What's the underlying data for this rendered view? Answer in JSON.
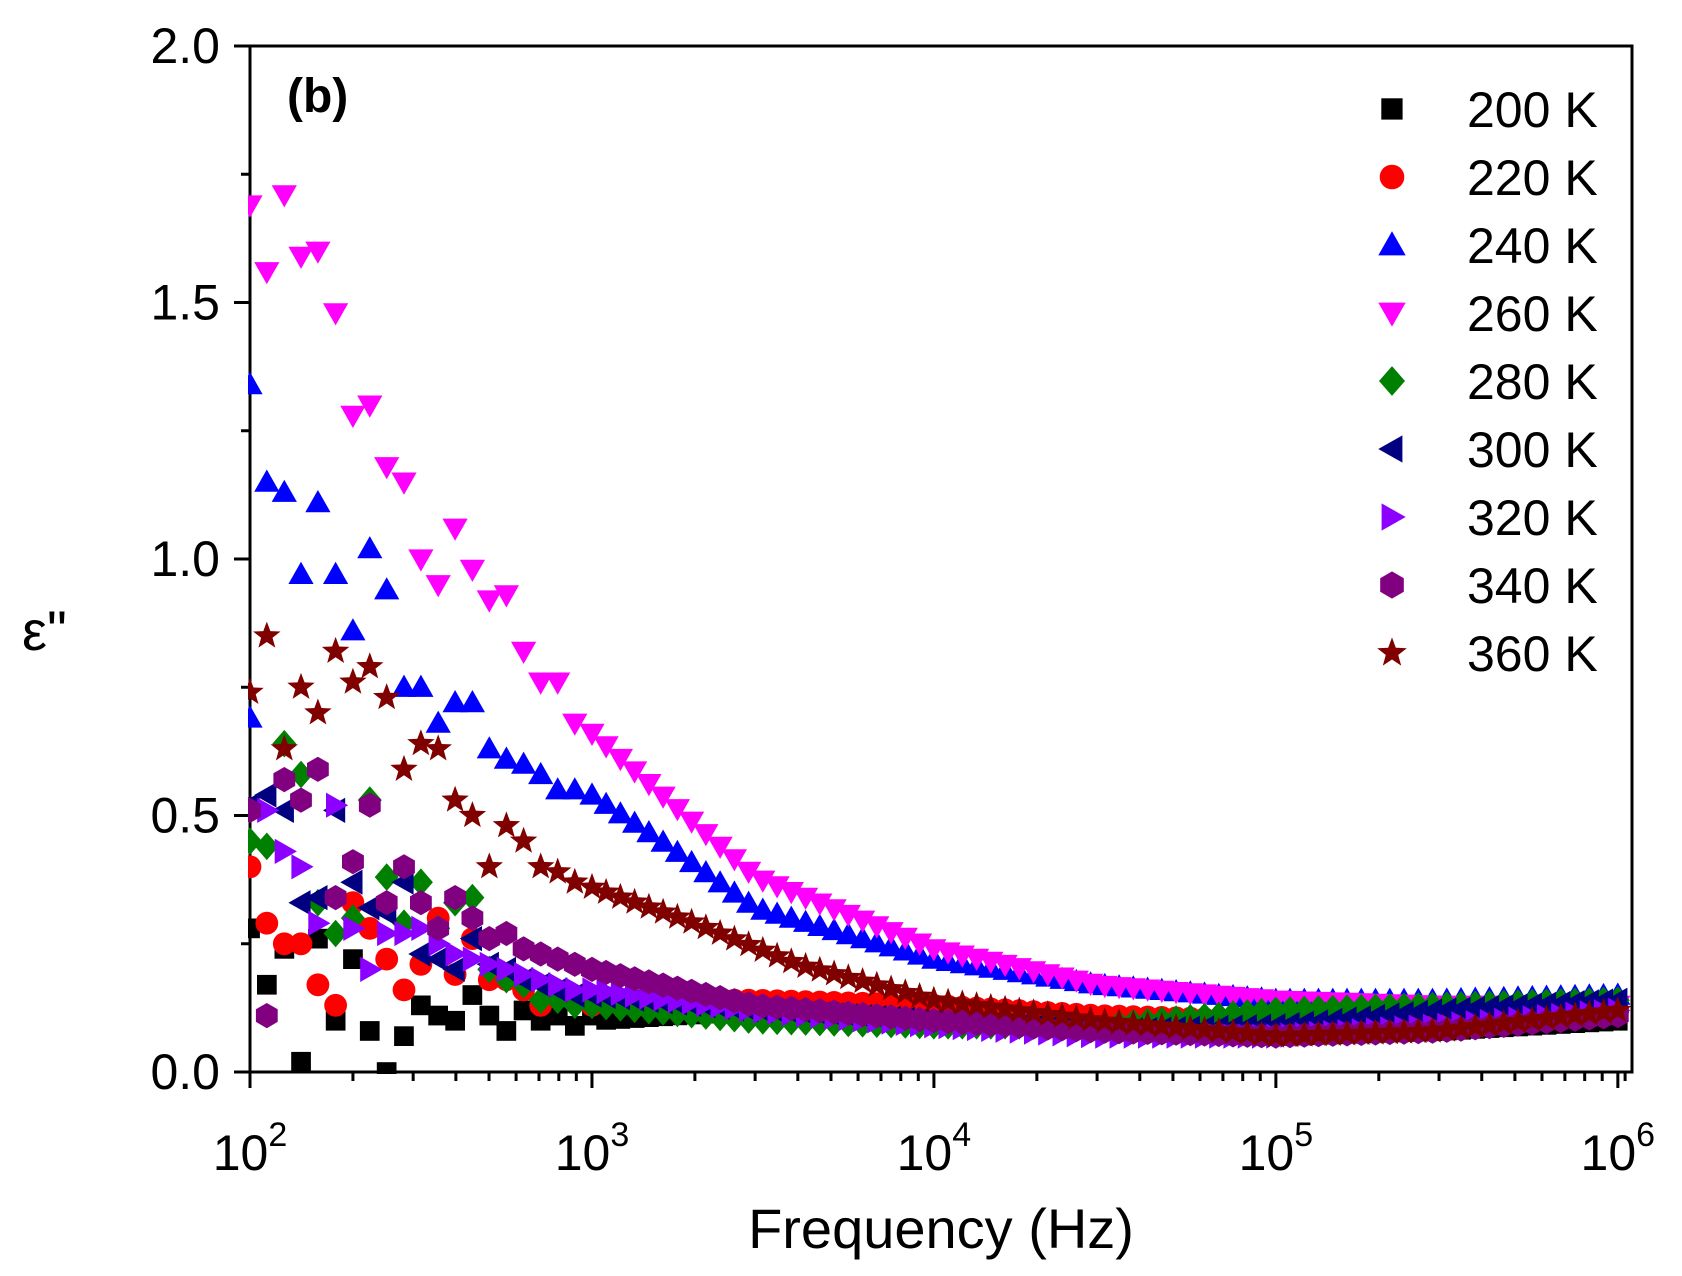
{
  "chart_data": {
    "type": "scatter",
    "panel_label": "(b)",
    "xlabel": "Frequency (Hz)",
    "ylabel": "ε\"",
    "xscale": "log",
    "xlim": [
      100,
      1100000
    ],
    "ylim": [
      0,
      2.0
    ],
    "x_ticks": [
      {
        "value": 100,
        "base": "10",
        "exp": "2"
      },
      {
        "value": 1000,
        "base": "10",
        "exp": "3"
      },
      {
        "value": 10000,
        "base": "10",
        "exp": "4"
      },
      {
        "value": 100000,
        "base": "10",
        "exp": "5"
      },
      {
        "value": 1000000,
        "base": "10",
        "exp": "6"
      }
    ],
    "y_ticks": [
      {
        "value": 0.0,
        "label": "0.0"
      },
      {
        "value": 0.5,
        "label": "0.5"
      },
      {
        "value": 1.0,
        "label": "1.0"
      },
      {
        "value": 1.5,
        "label": "1.5"
      },
      {
        "value": 2.0,
        "label": "2.0"
      }
    ],
    "legend_position": "top-right",
    "series": [
      {
        "name": "200 K",
        "marker": "square",
        "color": "#000000",
        "points": [
          [
            100,
            0.28
          ],
          [
            112,
            0.17
          ],
          [
            126,
            0.24
          ],
          [
            141,
            0.02
          ],
          [
            158,
            0.26
          ],
          [
            178,
            0.1
          ],
          [
            200,
            0.22
          ],
          [
            224,
            0.08
          ],
          [
            251,
            0.0
          ],
          [
            282,
            0.07
          ],
          [
            316,
            0.13
          ],
          [
            355,
            0.11
          ],
          [
            398,
            0.1
          ],
          [
            447,
            0.15
          ],
          [
            501,
            0.11
          ],
          [
            562,
            0.08
          ],
          [
            631,
            0.12
          ],
          [
            708,
            0.1
          ],
          [
            794,
            0.11
          ],
          [
            891,
            0.09
          ],
          [
            1000,
            0.11
          ]
        ],
        "anchors": [
          [
            1000,
            0.1
          ],
          [
            3000,
            0.12
          ],
          [
            10000,
            0.12
          ],
          [
            30000,
            0.1
          ],
          [
            100000,
            0.07
          ],
          [
            300000,
            0.08
          ],
          [
            1000000,
            0.1
          ]
        ]
      },
      {
        "name": "220 K",
        "marker": "circle",
        "color": "#ff0000",
        "points": [
          [
            100,
            0.4
          ],
          [
            112,
            0.29
          ],
          [
            126,
            0.25
          ],
          [
            141,
            0.25
          ],
          [
            158,
            0.17
          ],
          [
            178,
            0.13
          ],
          [
            200,
            0.33
          ],
          [
            224,
            0.28
          ],
          [
            251,
            0.22
          ],
          [
            282,
            0.16
          ],
          [
            316,
            0.21
          ],
          [
            355,
            0.3
          ],
          [
            398,
            0.19
          ],
          [
            447,
            0.26
          ],
          [
            501,
            0.18
          ],
          [
            562,
            0.18
          ],
          [
            631,
            0.16
          ],
          [
            708,
            0.13
          ],
          [
            794,
            0.15
          ],
          [
            891,
            0.14
          ],
          [
            1000,
            0.13
          ]
        ],
        "anchors": [
          [
            1000,
            0.14
          ],
          [
            3000,
            0.14
          ],
          [
            10000,
            0.13
          ],
          [
            30000,
            0.11
          ],
          [
            100000,
            0.1
          ],
          [
            300000,
            0.1
          ],
          [
            1000000,
            0.12
          ]
        ]
      },
      {
        "name": "240 K",
        "marker": "triangle-up",
        "color": "#0000ff",
        "points": [
          [
            100,
            1.34
          ],
          [
            100,
            0.69
          ],
          [
            112,
            1.15
          ],
          [
            126,
            1.13
          ],
          [
            141,
            0.97
          ],
          [
            158,
            1.11
          ],
          [
            178,
            0.97
          ],
          [
            200,
            0.86
          ],
          [
            224,
            1.02
          ],
          [
            251,
            0.94
          ],
          [
            282,
            0.75
          ],
          [
            316,
            0.75
          ],
          [
            355,
            0.68
          ],
          [
            398,
            0.72
          ],
          [
            447,
            0.72
          ],
          [
            501,
            0.63
          ],
          [
            562,
            0.61
          ],
          [
            631,
            0.6
          ],
          [
            708,
            0.58
          ],
          [
            794,
            0.55
          ],
          [
            891,
            0.55
          ],
          [
            1000,
            0.54
          ]
        ],
        "anchors": [
          [
            1000,
            0.54
          ],
          [
            1600,
            0.45
          ],
          [
            3000,
            0.32
          ],
          [
            10000,
            0.22
          ],
          [
            30000,
            0.17
          ],
          [
            100000,
            0.14
          ],
          [
            300000,
            0.14
          ],
          [
            1000000,
            0.15
          ]
        ]
      },
      {
        "name": "260 K",
        "marker": "triangle-down",
        "color": "#ff00ff",
        "points": [
          [
            100,
            1.69
          ],
          [
            112,
            1.56
          ],
          [
            126,
            1.71
          ],
          [
            141,
            1.59
          ],
          [
            158,
            1.6
          ],
          [
            178,
            1.48
          ],
          [
            200,
            1.28
          ],
          [
            224,
            1.3
          ],
          [
            251,
            1.18
          ],
          [
            282,
            1.15
          ],
          [
            316,
            1.0
          ],
          [
            355,
            0.95
          ],
          [
            398,
            1.06
          ],
          [
            447,
            0.98
          ],
          [
            501,
            0.92
          ],
          [
            562,
            0.93
          ],
          [
            631,
            0.82
          ],
          [
            708,
            0.76
          ],
          [
            794,
            0.76
          ],
          [
            891,
            0.68
          ],
          [
            1000,
            0.66
          ]
        ],
        "anchors": [
          [
            1000,
            0.66
          ],
          [
            1600,
            0.54
          ],
          [
            3000,
            0.38
          ],
          [
            10000,
            0.24
          ],
          [
            30000,
            0.17
          ],
          [
            100000,
            0.14
          ],
          [
            300000,
            0.13
          ],
          [
            1000000,
            0.13
          ]
        ]
      },
      {
        "name": "280 K",
        "marker": "diamond",
        "color": "#008000",
        "points": [
          [
            100,
            0.45
          ],
          [
            112,
            0.44
          ],
          [
            126,
            0.64
          ],
          [
            141,
            0.58
          ],
          [
            158,
            0.33
          ],
          [
            178,
            0.27
          ],
          [
            200,
            0.3
          ],
          [
            224,
            0.53
          ],
          [
            251,
            0.38
          ],
          [
            282,
            0.29
          ],
          [
            316,
            0.37
          ],
          [
            355,
            0.28
          ],
          [
            398,
            0.33
          ],
          [
            447,
            0.34
          ],
          [
            501,
            0.2
          ],
          [
            562,
            0.18
          ],
          [
            631,
            0.17
          ],
          [
            708,
            0.14
          ],
          [
            794,
            0.14
          ],
          [
            891,
            0.13
          ],
          [
            1000,
            0.13
          ]
        ],
        "anchors": [
          [
            1000,
            0.13
          ],
          [
            3000,
            0.1
          ],
          [
            10000,
            0.09
          ],
          [
            30000,
            0.09
          ],
          [
            100000,
            0.12
          ],
          [
            300000,
            0.13
          ],
          [
            1000000,
            0.14
          ]
        ]
      },
      {
        "name": "300 K",
        "marker": "triangle-left",
        "color": "#000080",
        "points": [
          [
            100,
            0.52
          ],
          [
            112,
            0.54
          ],
          [
            126,
            0.51
          ],
          [
            141,
            0.33
          ],
          [
            158,
            0.34
          ],
          [
            178,
            0.51
          ],
          [
            200,
            0.37
          ],
          [
            224,
            0.32
          ],
          [
            251,
            0.31
          ],
          [
            282,
            0.37
          ],
          [
            316,
            0.23
          ],
          [
            355,
            0.22
          ],
          [
            398,
            0.2
          ],
          [
            447,
            0.26
          ],
          [
            501,
            0.21
          ],
          [
            562,
            0.2
          ],
          [
            631,
            0.18
          ],
          [
            708,
            0.17
          ],
          [
            794,
            0.16
          ],
          [
            891,
            0.15
          ],
          [
            1000,
            0.15
          ]
        ],
        "anchors": [
          [
            1000,
            0.15
          ],
          [
            3000,
            0.12
          ],
          [
            10000,
            0.1
          ],
          [
            30000,
            0.08
          ],
          [
            100000,
            0.09
          ],
          [
            300000,
            0.12
          ],
          [
            1000000,
            0.14
          ]
        ]
      },
      {
        "name": "320 K",
        "marker": "triangle-right",
        "color": "#8b00ff",
        "points": [
          [
            100,
            0.52
          ],
          [
            112,
            0.51
          ],
          [
            126,
            0.43
          ],
          [
            141,
            0.4
          ],
          [
            158,
            0.29
          ],
          [
            178,
            0.52
          ],
          [
            200,
            0.28
          ],
          [
            224,
            0.2
          ],
          [
            251,
            0.27
          ],
          [
            282,
            0.27
          ],
          [
            316,
            0.28
          ],
          [
            355,
            0.25
          ],
          [
            398,
            0.23
          ],
          [
            447,
            0.22
          ],
          [
            501,
            0.21
          ],
          [
            562,
            0.2
          ],
          [
            631,
            0.19
          ],
          [
            708,
            0.18
          ],
          [
            794,
            0.17
          ],
          [
            891,
            0.16
          ],
          [
            1000,
            0.16
          ]
        ],
        "anchors": [
          [
            1000,
            0.16
          ],
          [
            3000,
            0.12
          ],
          [
            10000,
            0.09
          ],
          [
            30000,
            0.07
          ],
          [
            100000,
            0.07
          ],
          [
            300000,
            0.09
          ],
          [
            1000000,
            0.12
          ]
        ]
      },
      {
        "name": "340 K",
        "marker": "hexagon",
        "color": "#800080",
        "points": [
          [
            100,
            0.51
          ],
          [
            112,
            0.11
          ],
          [
            126,
            0.57
          ],
          [
            141,
            0.53
          ],
          [
            158,
            0.59
          ],
          [
            178,
            0.34
          ],
          [
            200,
            0.41
          ],
          [
            224,
            0.52
          ],
          [
            251,
            0.33
          ],
          [
            282,
            0.4
          ],
          [
            316,
            0.33
          ],
          [
            355,
            0.28
          ],
          [
            398,
            0.34
          ],
          [
            447,
            0.3
          ],
          [
            501,
            0.26
          ],
          [
            562,
            0.27
          ],
          [
            631,
            0.24
          ],
          [
            708,
            0.23
          ],
          [
            794,
            0.22
          ],
          [
            891,
            0.21
          ],
          [
            1000,
            0.2
          ]
        ],
        "anchors": [
          [
            1000,
            0.2
          ],
          [
            3000,
            0.13
          ],
          [
            10000,
            0.1
          ],
          [
            30000,
            0.08
          ],
          [
            100000,
            0.07
          ],
          [
            300000,
            0.08
          ],
          [
            1000000,
            0.11
          ]
        ]
      },
      {
        "name": "360 K",
        "marker": "star",
        "color": "#800000",
        "points": [
          [
            100,
            0.74
          ],
          [
            112,
            0.85
          ],
          [
            126,
            0.63
          ],
          [
            141,
            0.75
          ],
          [
            158,
            0.7
          ],
          [
            178,
            0.82
          ],
          [
            200,
            0.76
          ],
          [
            224,
            0.79
          ],
          [
            251,
            0.73
          ],
          [
            282,
            0.59
          ],
          [
            316,
            0.64
          ],
          [
            355,
            0.63
          ],
          [
            398,
            0.53
          ],
          [
            447,
            0.5
          ],
          [
            501,
            0.4
          ],
          [
            562,
            0.48
          ],
          [
            631,
            0.45
          ],
          [
            708,
            0.4
          ],
          [
            794,
            0.39
          ],
          [
            891,
            0.37
          ],
          [
            1000,
            0.36
          ]
        ],
        "anchors": [
          [
            1000,
            0.36
          ],
          [
            2000,
            0.29
          ],
          [
            4000,
            0.21
          ],
          [
            10000,
            0.14
          ],
          [
            30000,
            0.1
          ],
          [
            100000,
            0.07
          ],
          [
            300000,
            0.08
          ],
          [
            1000000,
            0.12
          ]
        ]
      }
    ]
  }
}
